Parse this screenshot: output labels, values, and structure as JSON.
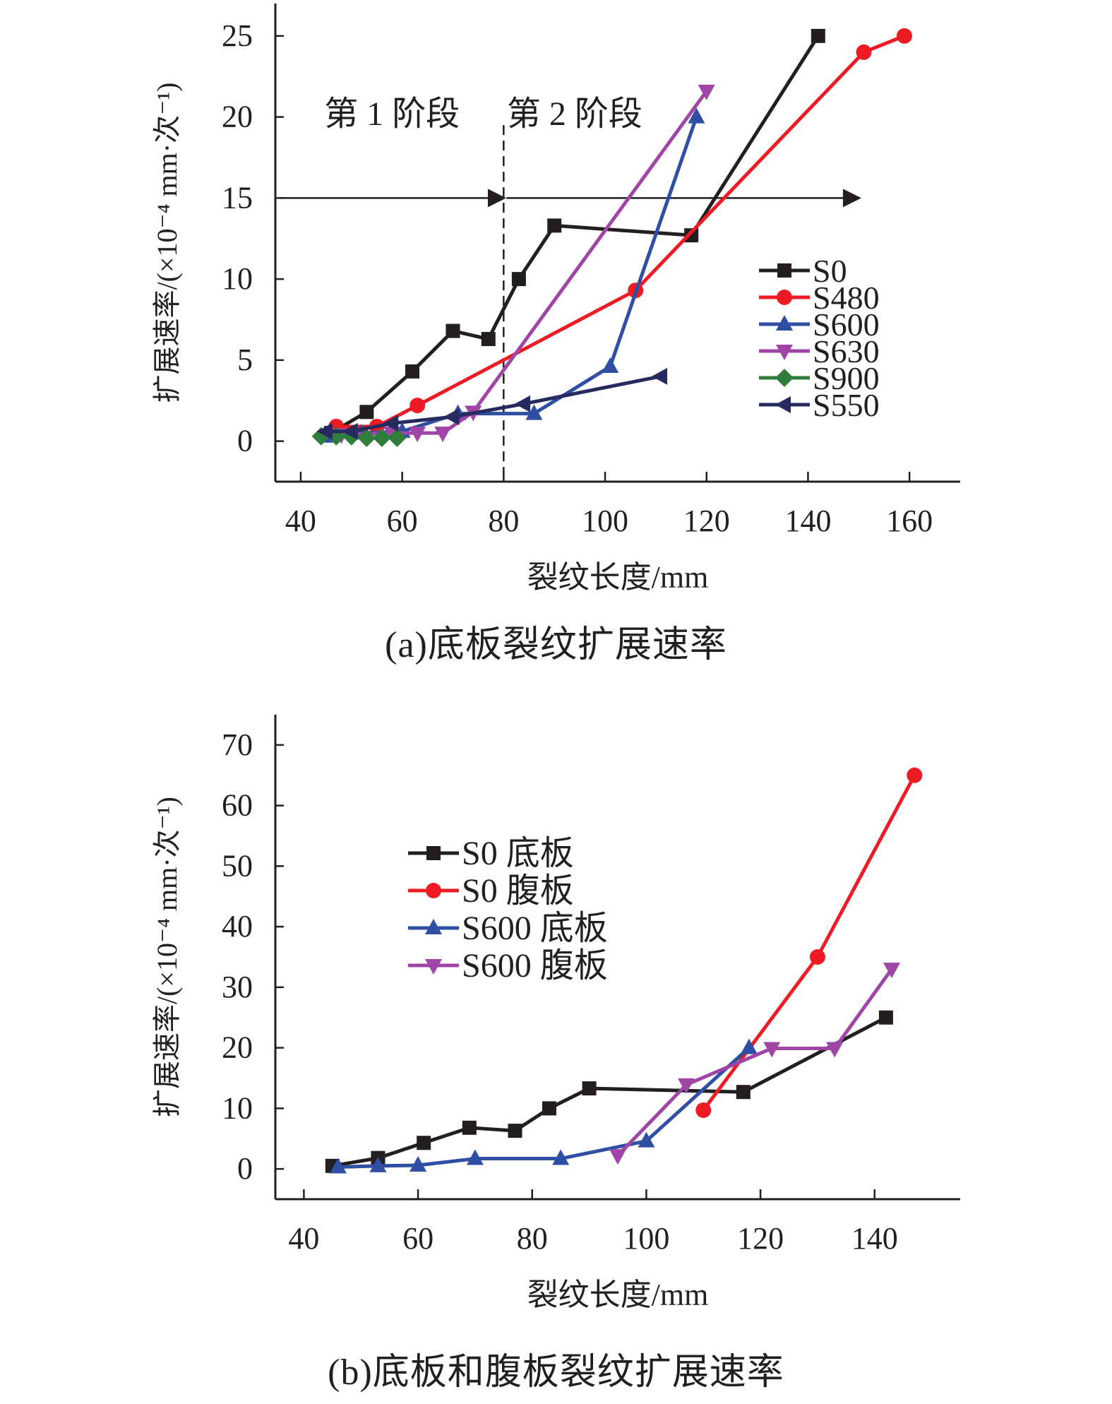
{
  "chart_data": [
    {
      "id": "a",
      "type": "line",
      "caption": "(a)底板裂纹扩展速率",
      "xlabel": "裂纹长度/mm",
      "ylabel": "扩展速率/(×10⁻⁴ mm·次⁻¹)",
      "xlim": [
        35,
        170
      ],
      "ylim": [
        -2.5,
        27
      ],
      "xticks": [
        40,
        60,
        80,
        100,
        120,
        140,
        160
      ],
      "yticks": [
        0,
        5,
        10,
        15,
        20,
        25
      ],
      "grid": false,
      "legend_position": "right-middle",
      "annotations": {
        "stage1_label": "第 1 阶段",
        "stage2_label": "第 2 阶段",
        "divider_x": 80,
        "arrow_y": 15,
        "arrow1_x": [
          35,
          78
        ],
        "arrow2_x": [
          80,
          148
        ]
      },
      "series": [
        {
          "name": "S0",
          "color": "#231f20",
          "marker": "square",
          "x": [
            46,
            53,
            62,
            70,
            77,
            83,
            90,
            117,
            142
          ],
          "y": [
            0.5,
            1.8,
            4.3,
            6.8,
            6.3,
            10.0,
            13.3,
            12.7,
            25.0
          ]
        },
        {
          "name": "S480",
          "color": "#ed1c24",
          "marker": "circle",
          "x": [
            47,
            55,
            63,
            106,
            151,
            159
          ],
          "y": [
            0.9,
            0.9,
            2.2,
            9.3,
            24.0,
            25.0
          ]
        },
        {
          "name": "S600",
          "color": "#2e4fa3",
          "marker": "triangle-up",
          "x": [
            46,
            52,
            60,
            71,
            86,
            101,
            118
          ],
          "y": [
            0.3,
            0.5,
            0.6,
            1.7,
            1.7,
            4.6,
            20.0
          ]
        },
        {
          "name": "S630",
          "color": "#9e45a6",
          "marker": "triangle-down",
          "x": [
            48,
            58,
            63,
            68,
            74,
            120
          ],
          "y": [
            0.4,
            0.5,
            0.5,
            0.5,
            1.8,
            21.6
          ]
        },
        {
          "name": "S900",
          "color": "#2e7d3b",
          "marker": "diamond",
          "x": [
            44,
            47,
            50,
            53,
            56,
            59
          ],
          "y": [
            0.3,
            0.3,
            0.3,
            0.2,
            0.2,
            0.2
          ]
        },
        {
          "name": "S550",
          "color": "#262a5e",
          "marker": "triangle-left",
          "x": [
            45,
            50,
            58,
            70,
            84,
            111
          ],
          "y": [
            0.6,
            0.6,
            1.1,
            1.5,
            2.3,
            4.0
          ]
        }
      ]
    },
    {
      "id": "b",
      "type": "line",
      "caption": "(b)底板和腹板裂纹扩展速率",
      "xlabel": "裂纹长度/mm",
      "ylabel": "扩展速率/(×10⁻⁴ mm·次⁻¹)",
      "xlim": [
        35,
        155
      ],
      "ylim": [
        -5,
        75
      ],
      "xticks": [
        40,
        60,
        80,
        100,
        120,
        140
      ],
      "yticks": [
        0,
        10,
        20,
        30,
        40,
        50,
        60,
        70
      ],
      "grid": false,
      "legend_position": "top-left",
      "series": [
        {
          "name": "S0 底板",
          "color": "#231f20",
          "marker": "square",
          "x": [
            45,
            53,
            61,
            69,
            77,
            83,
            90,
            117,
            142
          ],
          "y": [
            0.5,
            1.8,
            4.3,
            6.8,
            6.3,
            10.0,
            13.3,
            12.7,
            25.0
          ]
        },
        {
          "name": "S0 腹板",
          "color": "#ed1c24",
          "marker": "circle",
          "x": [
            110,
            130,
            147
          ],
          "y": [
            9.7,
            35.0,
            65.0
          ]
        },
        {
          "name": "S600 底板",
          "color": "#2e4fa3",
          "marker": "triangle-up",
          "x": [
            46,
            53,
            60,
            70,
            85,
            100,
            118
          ],
          "y": [
            0.3,
            0.5,
            0.6,
            1.7,
            1.7,
            4.6,
            20.0
          ]
        },
        {
          "name": "S600 腹板",
          "color": "#9e45a6",
          "marker": "triangle-down",
          "x": [
            95,
            107,
            122,
            133,
            143
          ],
          "y": [
            2.2,
            13.9,
            19.9,
            19.9,
            33.0
          ]
        }
      ]
    }
  ]
}
